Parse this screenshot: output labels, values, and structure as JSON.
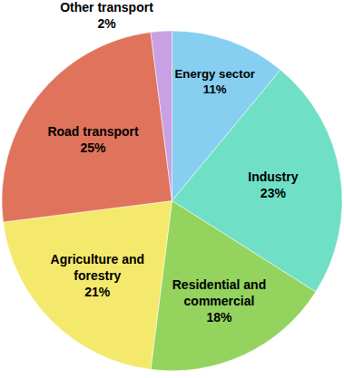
{
  "chart_data": {
    "type": "pie",
    "categories": [
      "Energy sector",
      "Industry",
      "Residential and commercial",
      "Agriculture and forestry",
      "Road transport",
      "Other transport"
    ],
    "values": [
      11,
      23,
      18,
      21,
      25,
      2
    ],
    "value_labels": [
      "11%",
      "23%",
      "18%",
      "21%",
      "25%",
      "2%"
    ],
    "colors": [
      "#86cff0",
      "#6fe0c6",
      "#93d35e",
      "#f4e96c",
      "#e0735c",
      "#c9a0e4"
    ],
    "data_labels": true
  }
}
